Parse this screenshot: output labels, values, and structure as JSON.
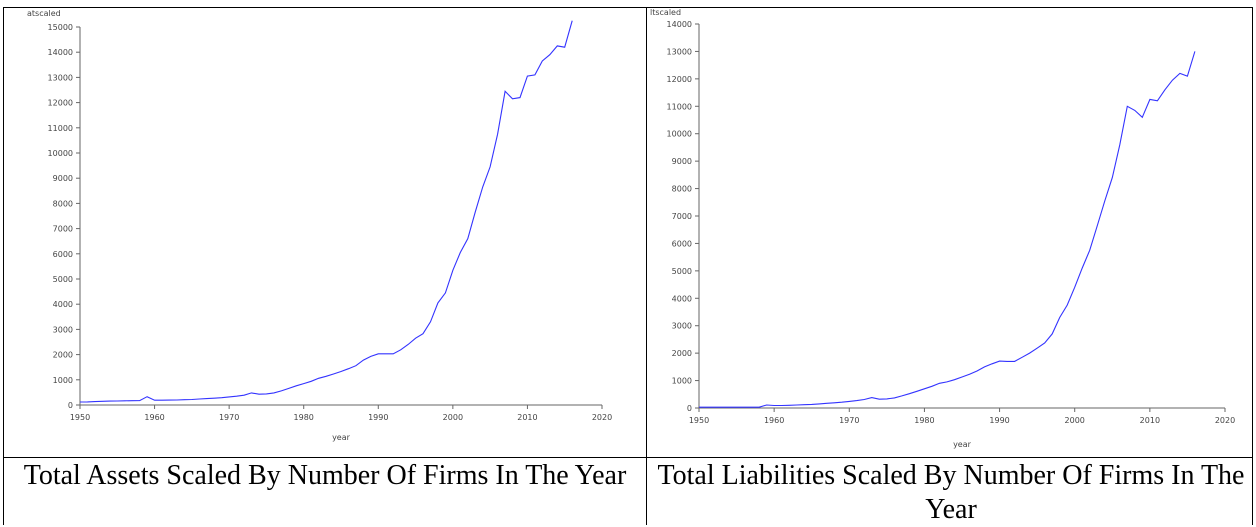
{
  "captions": [
    "Total Assets Scaled By Number Of Firms In The Year",
    "Total Liabilities Scaled By Number Of Firms In The Year"
  ],
  "chart_data": [
    {
      "type": "line",
      "ylabel": "atscaled",
      "xlabel": "year",
      "xlim": [
        1950,
        2020
      ],
      "ylim": [
        0,
        15000
      ],
      "xticks": [
        1950,
        1960,
        1970,
        1980,
        1990,
        2000,
        2010,
        2020
      ],
      "yticks": [
        0,
        1000,
        2000,
        3000,
        4000,
        5000,
        6000,
        7000,
        8000,
        9000,
        10000,
        11000,
        12000,
        13000,
        14000,
        15000
      ],
      "line_color": "#3333ff",
      "series": [
        {
          "x": [
            1950,
            1951,
            1952,
            1953,
            1954,
            1955,
            1956,
            1957,
            1958,
            1959,
            1960,
            1961,
            1962,
            1963,
            1964,
            1965,
            1966,
            1967,
            1968,
            1969,
            1970,
            1971,
            1972,
            1973,
            1974,
            1975,
            1976,
            1977,
            1978,
            1979,
            1980,
            1981,
            1982,
            1983,
            1984,
            1985,
            1986,
            1987,
            1988,
            1989,
            1990,
            1991,
            1992,
            1993,
            1994,
            1995,
            1996,
            1997,
            1998,
            1999,
            2000,
            2001,
            2002,
            2003,
            2004,
            2005,
            2006,
            2007,
            2008,
            2009,
            2010,
            2011,
            2012,
            2013,
            2014,
            2015,
            2016
          ],
          "y": [
            120,
            125,
            135,
            145,
            155,
            160,
            165,
            170,
            175,
            330,
            190,
            190,
            195,
            200,
            210,
            220,
            240,
            255,
            270,
            290,
            320,
            350,
            390,
            480,
            430,
            440,
            480,
            560,
            660,
            760,
            850,
            940,
            1060,
            1140,
            1230,
            1330,
            1440,
            1560,
            1780,
            1930,
            2030,
            2030,
            2030,
            2190,
            2400,
            2650,
            2830,
            3300,
            4050,
            4450,
            5350,
            6050,
            6600,
            7650,
            8650,
            9450,
            10750,
            12450,
            12150,
            12200,
            13050,
            13100,
            13650,
            13900,
            14250,
            14200,
            15250
          ]
        }
      ]
    },
    {
      "type": "line",
      "ylabel": "ltscaled",
      "xlabel": "year",
      "xlim": [
        1950,
        2020
      ],
      "ylim": [
        0,
        14000
      ],
      "xticks": [
        1950,
        1960,
        1970,
        1980,
        1990,
        2000,
        2010,
        2020
      ],
      "yticks": [
        0,
        1000,
        2000,
        3000,
        4000,
        5000,
        6000,
        7000,
        8000,
        9000,
        10000,
        11000,
        12000,
        13000,
        14000
      ],
      "line_color": "#3333ff",
      "series": [
        {
          "x": [
            1950,
            1951,
            1952,
            1953,
            1954,
            1955,
            1956,
            1957,
            1958,
            1959,
            1960,
            1961,
            1962,
            1963,
            1964,
            1965,
            1966,
            1967,
            1968,
            1969,
            1970,
            1971,
            1972,
            1973,
            1974,
            1975,
            1976,
            1977,
            1978,
            1979,
            1980,
            1981,
            1982,
            1983,
            1984,
            1985,
            1986,
            1987,
            1988,
            1989,
            1990,
            1991,
            1992,
            1993,
            1994,
            1995,
            1996,
            1997,
            1998,
            1999,
            2000,
            2001,
            2002,
            2003,
            2004,
            2005,
            2006,
            2007,
            2008,
            2009,
            2010,
            2011,
            2012,
            2013,
            2014,
            2015,
            2016
          ],
          "y": [
            30,
            30,
            30,
            30,
            30,
            30,
            30,
            30,
            30,
            110,
            90,
            90,
            100,
            110,
            120,
            130,
            150,
            170,
            190,
            210,
            240,
            270,
            310,
            380,
            320,
            330,
            370,
            440,
            520,
            610,
            700,
            790,
            900,
            950,
            1030,
            1130,
            1230,
            1350,
            1500,
            1610,
            1710,
            1700,
            1700,
            1850,
            2000,
            2180,
            2370,
            2700,
            3300,
            3750,
            4400,
            5100,
            5750,
            6650,
            7550,
            8400,
            9600,
            11000,
            10850,
            10600,
            11250,
            11200,
            11600,
            11950,
            12200,
            12100,
            13000
          ]
        }
      ]
    }
  ]
}
